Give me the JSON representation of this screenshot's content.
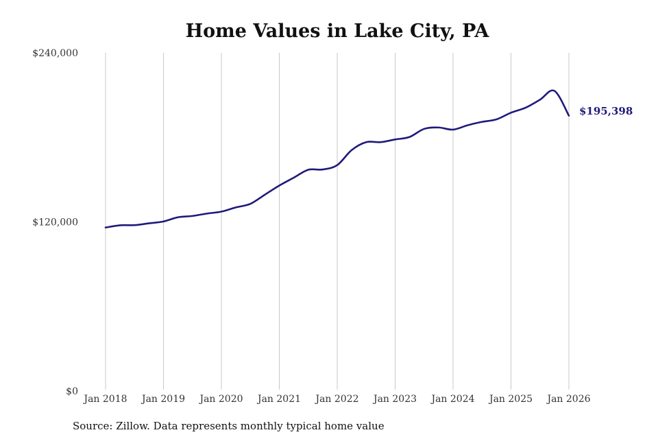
{
  "chart_data": {
    "type": "line",
    "title": "Home Values in Lake City, PA",
    "source_note": "Source: Zillow. Data represents monthly typical home value",
    "xlabel": "",
    "ylabel": "",
    "ylim": [
      0,
      240000
    ],
    "y_ticks": [
      {
        "value": 0,
        "label": "$0"
      },
      {
        "value": 120000,
        "label": "$120,000"
      },
      {
        "value": 240000,
        "label": "$240,000"
      }
    ],
    "x_range": [
      "2018-01",
      "2026-01"
    ],
    "x_ticks": [
      {
        "value": "2018-01",
        "label": "Jan 2018"
      },
      {
        "value": "2019-01",
        "label": "Jan 2019"
      },
      {
        "value": "2020-01",
        "label": "Jan 2020"
      },
      {
        "value": "2021-01",
        "label": "Jan 2021"
      },
      {
        "value": "2022-01",
        "label": "Jan 2022"
      },
      {
        "value": "2023-01",
        "label": "Jan 2023"
      },
      {
        "value": "2024-01",
        "label": "Jan 2024"
      },
      {
        "value": "2025-01",
        "label": "Jan 2025"
      },
      {
        "value": "2026-01",
        "label": "Jan 2026"
      }
    ],
    "grid": {
      "vertical": true,
      "horizontal": false
    },
    "legend": "none",
    "end_label": "$195,398",
    "colors": {
      "line": "#1f1a7a",
      "end_label": "#1f1a7a",
      "grid": "#c8c8c8"
    },
    "series": [
      {
        "values": [
          {
            "x": "2018-01",
            "y": 116000
          },
          {
            "x": "2018-04",
            "y": 117600
          },
          {
            "x": "2018-07",
            "y": 117700
          },
          {
            "x": "2018-10",
            "y": 119000
          },
          {
            "x": "2019-01",
            "y": 120300
          },
          {
            "x": "2019-04",
            "y": 123300
          },
          {
            "x": "2019-07",
            "y": 124200
          },
          {
            "x": "2019-10",
            "y": 125900
          },
          {
            "x": "2020-01",
            "y": 127300
          },
          {
            "x": "2020-04",
            "y": 130300
          },
          {
            "x": "2020-07",
            "y": 132800
          },
          {
            "x": "2020-10",
            "y": 139300
          },
          {
            "x": "2021-01",
            "y": 145800
          },
          {
            "x": "2021-04",
            "y": 151400
          },
          {
            "x": "2021-07",
            "y": 157000
          },
          {
            "x": "2021-10",
            "y": 157200
          },
          {
            "x": "2022-01",
            "y": 160300
          },
          {
            "x": "2022-04",
            "y": 171000
          },
          {
            "x": "2022-07",
            "y": 176600
          },
          {
            "x": "2022-10",
            "y": 176600
          },
          {
            "x": "2023-01",
            "y": 178500
          },
          {
            "x": "2023-04",
            "y": 180300
          },
          {
            "x": "2023-07",
            "y": 186000
          },
          {
            "x": "2023-10",
            "y": 187000
          },
          {
            "x": "2024-01",
            "y": 185500
          },
          {
            "x": "2024-04",
            "y": 188600
          },
          {
            "x": "2024-07",
            "y": 191000
          },
          {
            "x": "2024-10",
            "y": 192800
          },
          {
            "x": "2025-01",
            "y": 197500
          },
          {
            "x": "2025-04",
            "y": 201000
          },
          {
            "x": "2025-07",
            "y": 206700
          },
          {
            "x": "2025-10",
            "y": 213000
          },
          {
            "x": "2026-01",
            "y": 195398
          }
        ]
      }
    ]
  }
}
